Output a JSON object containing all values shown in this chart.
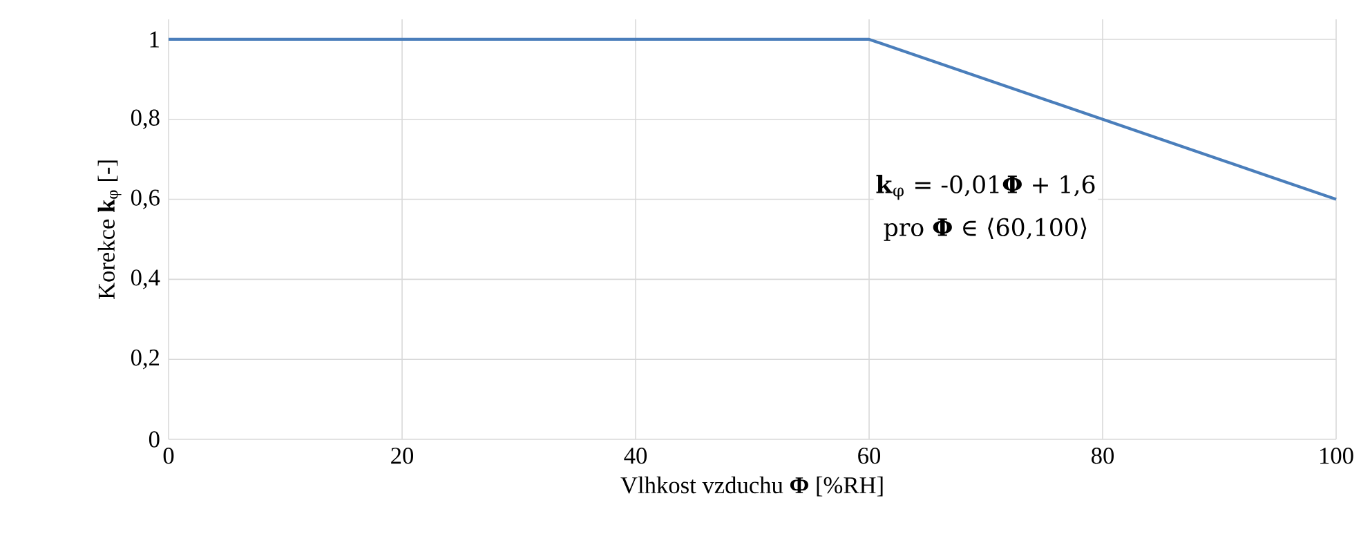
{
  "chart_data": {
    "type": "line",
    "xlabel": "Vlhkost vzduchu **Φ** [%RH]",
    "ylabel": "Korekce  **k**$_{φ}$ [-]",
    "x": [
      0,
      60,
      100
    ],
    "series": [
      {
        "color": "#4a7ebb",
        "values": [
          1,
          1,
          0.6
        ]
      }
    ],
    "xlim": [
      0,
      100
    ],
    "xticks": [
      0,
      20,
      40,
      60,
      80,
      100
    ],
    "ylim": [
      0,
      1.05
    ],
    "yticks": [
      0,
      {
        "value": 0.2,
        "label": "0,2"
      },
      {
        "value": 0.4,
        "label": "0,4"
      },
      {
        "value": 0.6,
        "label": "0,6"
      },
      {
        "value": 0.8,
        "label": "0,8"
      },
      1
    ],
    "grid": true,
    "marker": "none",
    "line_style": "solid",
    "annotations": [
      "**k**$_{φ}$ = -0,01**Φ** + 1,6",
      "pro **Φ** ∈ ⟨60,100⟩"
    ]
  }
}
